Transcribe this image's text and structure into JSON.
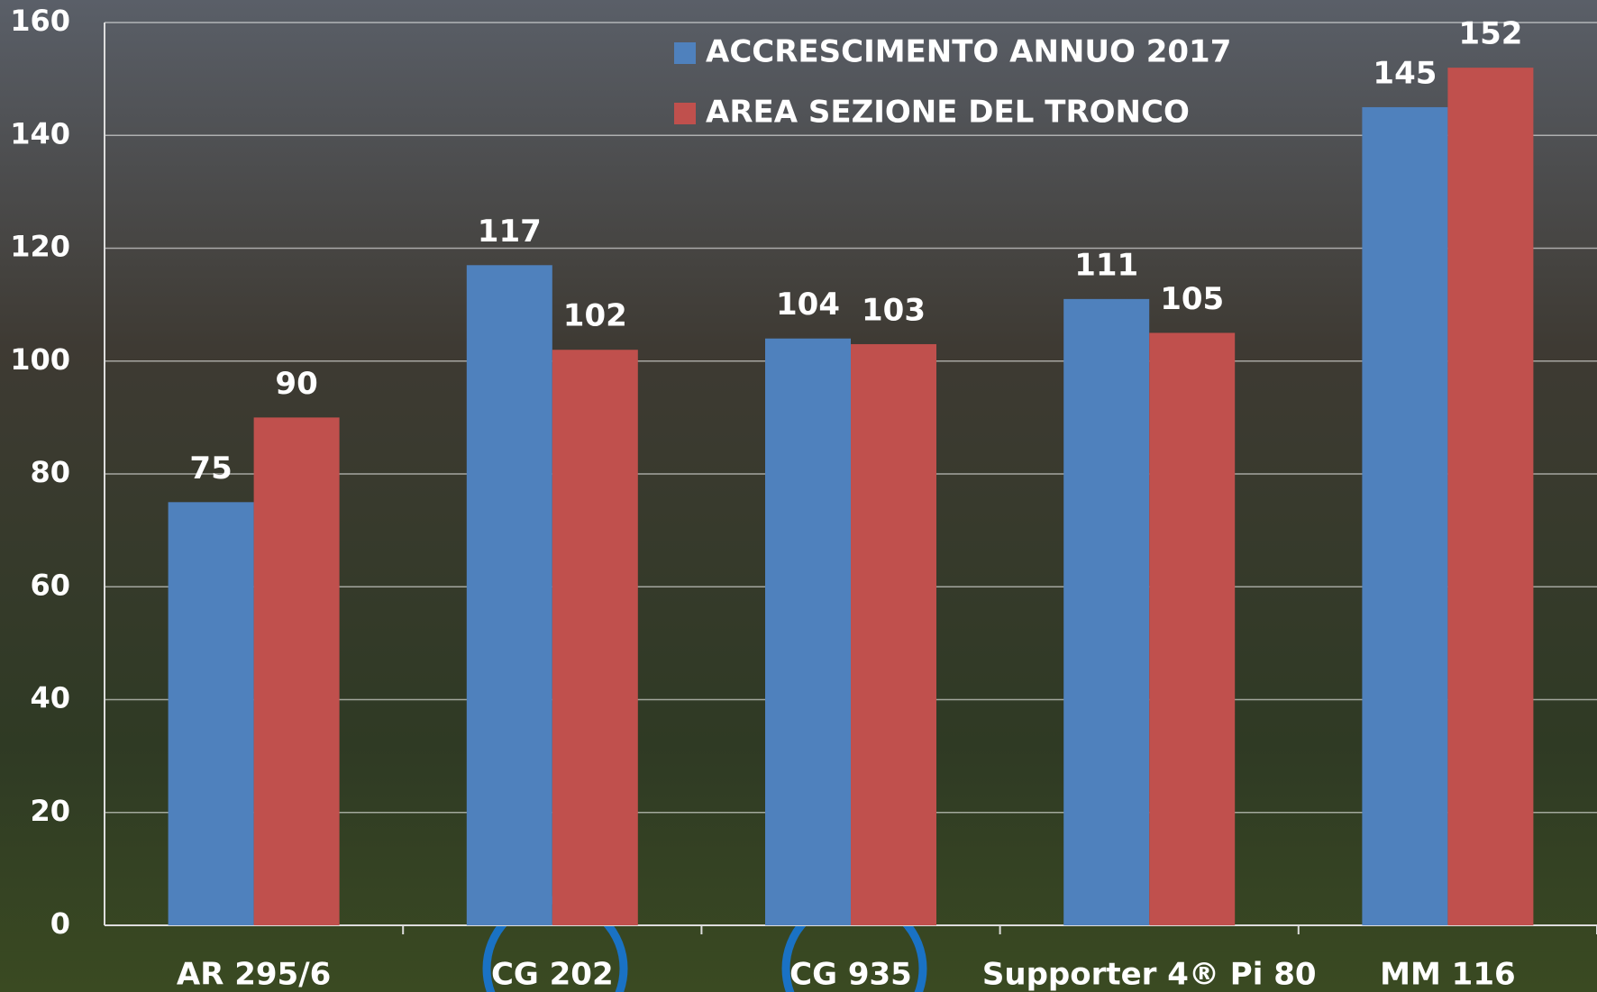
{
  "chart_data": {
    "type": "bar",
    "categories": [
      "AR 295/6",
      "CG 202",
      "CG 935",
      "Supporter 4® Pi 80",
      "MM 116"
    ],
    "series": [
      {
        "name": "ACCRESCIMENTO ANNUO 2017",
        "color": "#4f81bd",
        "values": [
          75,
          117,
          104,
          111,
          145
        ]
      },
      {
        "name": "AREA SEZIONE DEL TRONCO",
        "color": "#c0504d",
        "values": [
          90,
          102,
          103,
          105,
          152
        ]
      }
    ],
    "ylim": [
      0,
      160
    ],
    "yticks": [
      0,
      20,
      40,
      60,
      80,
      100,
      120,
      140,
      160
    ],
    "grid": true
  }
}
